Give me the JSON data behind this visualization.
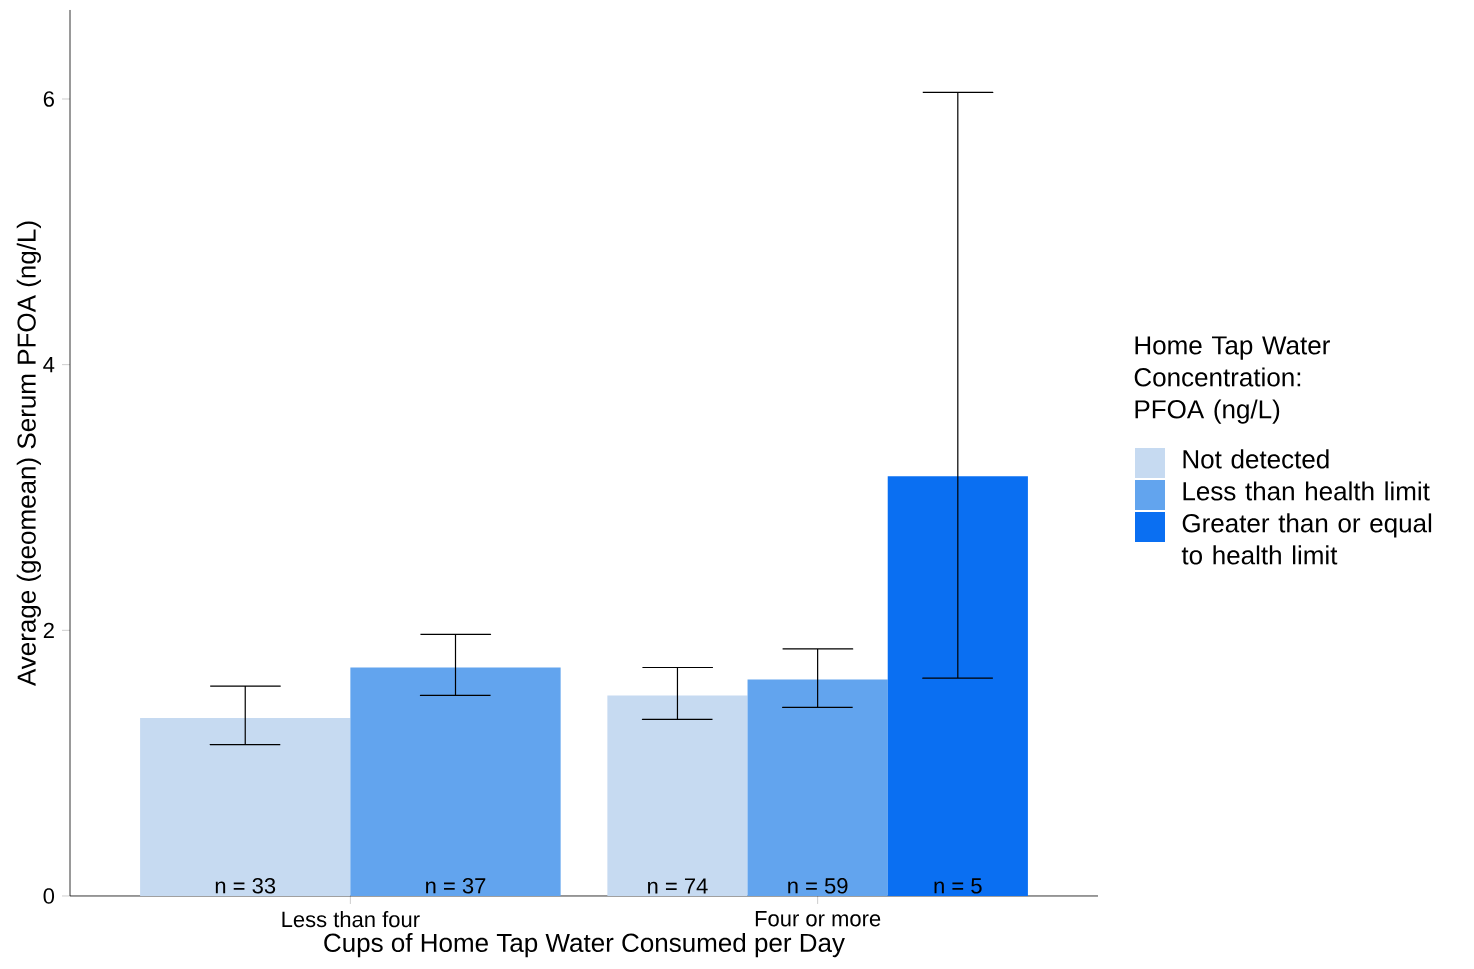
{
  "chart_data": {
    "type": "bar",
    "xlabel": "Cups of Home Tap Water Consumed per Day",
    "ylabel": "Average (geomean) Serum PFOA (ng/L)",
    "legend_title": "Home Tap Water Concentration: PFOA (ng/L)",
    "categories": [
      "Less than four",
      "Four or more"
    ],
    "series": [
      {
        "name": "Not detected",
        "color": "#c6daf1",
        "values": [
          1.34,
          1.51
        ],
        "errors": [
          [
            1.14,
            1.58
          ],
          [
            1.33,
            1.72
          ]
        ]
      },
      {
        "name": "Less than health limit",
        "color": "#62a4ee",
        "values": [
          1.72,
          1.63
        ],
        "errors": [
          [
            1.51,
            1.97
          ],
          [
            1.42,
            1.86
          ]
        ]
      },
      {
        "name": "Greater than or equal to health limit",
        "color": "#0a6ff2",
        "values": [
          null,
          3.16
        ],
        "errors": [
          null,
          [
            1.64,
            6.05
          ]
        ]
      }
    ],
    "ylim": [
      0,
      6.67
    ],
    "yticks": [
      0,
      2,
      4,
      6
    ],
    "legend": "right",
    "grid": false,
    "annotations": [
      "n = 33",
      "n = 37",
      "n = 74",
      "n = 59",
      "n = 5"
    ]
  }
}
